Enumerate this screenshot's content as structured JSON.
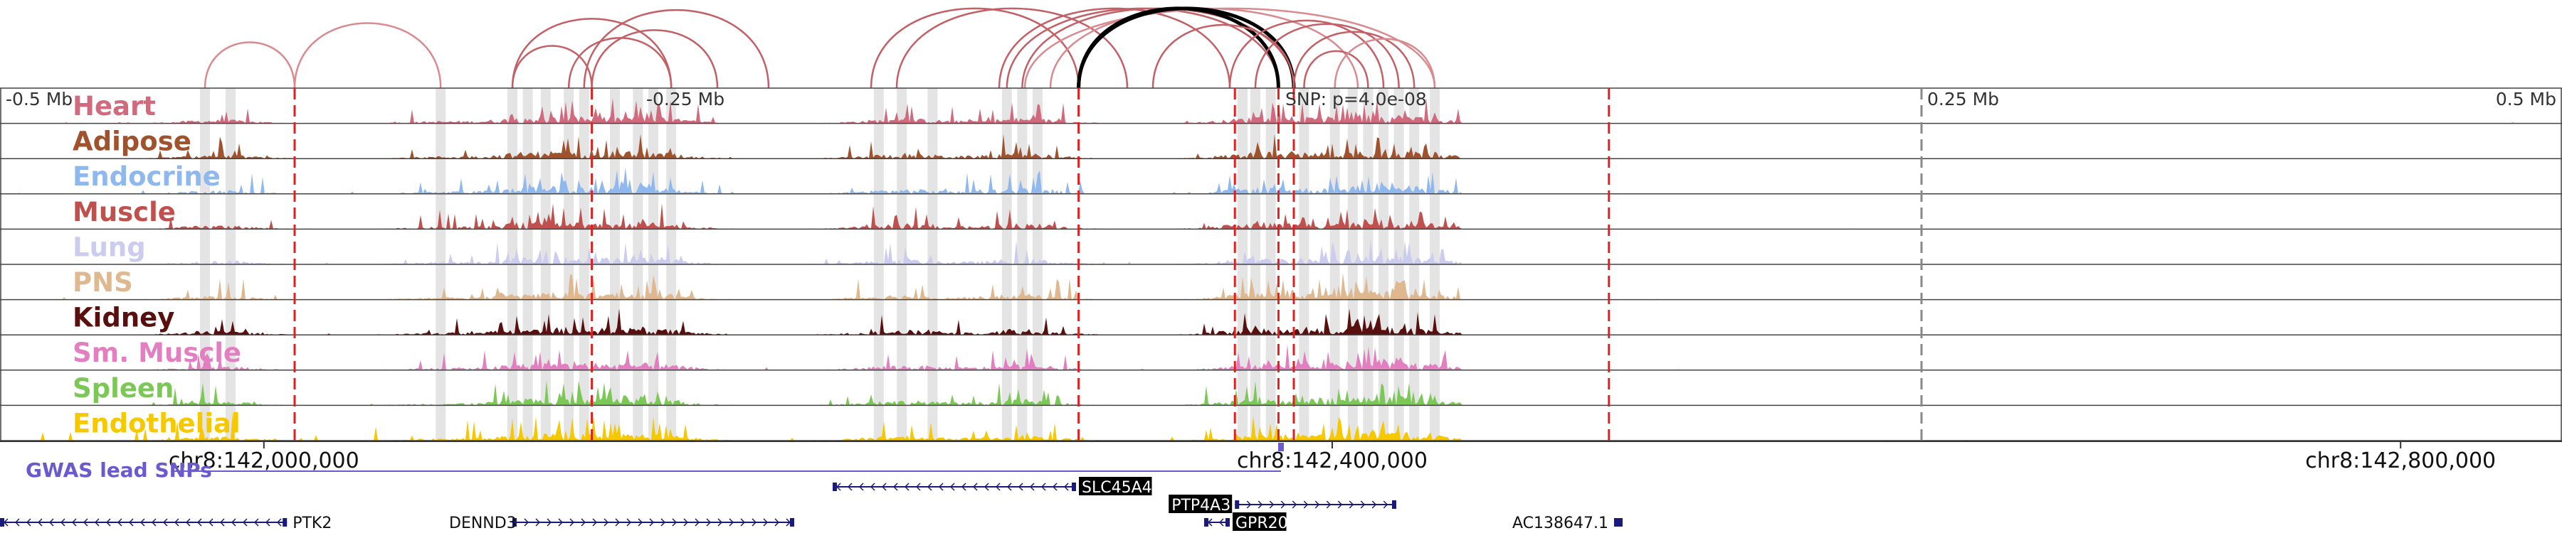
{
  "tracks": [
    {
      "name": "Heart",
      "color": "#d26a7e"
    },
    {
      "name": "Adipose",
      "color": "#a0522d"
    },
    {
      "name": "Endocrine",
      "color": "#8fb8ee"
    },
    {
      "name": "Muscle",
      "color": "#c0504d"
    },
    {
      "name": "Lung",
      "color": "#ccccee"
    },
    {
      "name": "PNS",
      "color": "#e0b890"
    },
    {
      "name": "Kidney",
      "color": "#5a0f0f"
    },
    {
      "name": "Sm. Muscle",
      "color": "#e37fc0"
    },
    {
      "name": "Spleen",
      "color": "#7cc857"
    },
    {
      "name": "Endothelial",
      "color": "#f5c800"
    }
  ],
  "top_axis": {
    "labels": [
      {
        "text": "-0.5 Mb",
        "pos": 0.0
      },
      {
        "text": "-0.25 Mb",
        "pos": 0.25
      },
      {
        "text": "0.25 Mb",
        "pos": 0.75
      },
      {
        "text": "0.5 Mb",
        "pos": 1.0
      }
    ],
    "snp_label": "SNP: p=4.0e-08",
    "snp_pos": 0.5
  },
  "coords": [
    {
      "text": "chr8:142,000,000",
      "pos": 0.103
    },
    {
      "text": "chr8:142,400,000",
      "pos": 0.52
    },
    {
      "text": "chr8:142,800,000",
      "pos": 0.937
    }
  ],
  "gwas_label": "GWAS lead SNPs",
  "genes": [
    {
      "name": "SLC45A4",
      "start": 0.325,
      "end": 0.42,
      "strand": "-",
      "row": 0,
      "label_pos": "right",
      "highlight": true
    },
    {
      "name": "PTP4A3",
      "start": 0.482,
      "end": 0.545,
      "strand": "+",
      "row": 1,
      "label_pos": "left",
      "highlight": true
    },
    {
      "name": "PTK2",
      "start": 0.0,
      "end": 0.112,
      "strand": "-",
      "row": 2,
      "label_pos": "right",
      "highlight": false
    },
    {
      "name": "DENND3",
      "start": 0.2,
      "end": 0.31,
      "strand": "+",
      "row": 2,
      "label_pos": "left",
      "highlight": false
    },
    {
      "name": "GPR20",
      "start": 0.47,
      "end": 0.48,
      "strand": "-",
      "row": 2,
      "label_pos": "right",
      "highlight": true
    },
    {
      "name": "AC138647.1",
      "start": 0.63,
      "end": 0.633,
      "strand": "+",
      "row": 2,
      "label_pos": "left",
      "highlight": false
    }
  ],
  "red_lines": [
    0.115,
    0.231,
    0.421,
    0.482,
    0.499,
    0.505,
    0.628
  ],
  "gray_line": 0.75,
  "gray_bands": [
    0.08,
    0.09,
    0.172,
    0.2,
    0.206,
    0.213,
    0.222,
    0.228,
    0.24,
    0.249,
    0.255,
    0.262,
    0.343,
    0.352,
    0.364,
    0.393,
    0.399,
    0.405,
    0.485,
    0.49,
    0.496,
    0.509,
    0.521,
    0.528,
    0.534,
    0.54,
    0.546,
    0.552,
    0.56
  ],
  "loops": [
    {
      "from": 0.08,
      "to": 0.115,
      "color": "#d98a8f"
    },
    {
      "from": 0.115,
      "to": 0.172,
      "color": "#d98a8f"
    },
    {
      "from": 0.2,
      "to": 0.231,
      "color": "#c26066"
    },
    {
      "from": 0.2,
      "to": 0.262,
      "color": "#c26066"
    },
    {
      "from": 0.222,
      "to": 0.262,
      "color": "#c26066"
    },
    {
      "from": 0.231,
      "to": 0.28,
      "color": "#c26066"
    },
    {
      "from": 0.228,
      "to": 0.3,
      "color": "#c26066"
    },
    {
      "from": 0.34,
      "to": 0.421,
      "color": "#c26066"
    },
    {
      "from": 0.35,
      "to": 0.44,
      "color": "#c26066"
    },
    {
      "from": 0.39,
      "to": 0.48,
      "color": "#c26066"
    },
    {
      "from": 0.393,
      "to": 0.499,
      "color": "#c26066"
    },
    {
      "from": 0.399,
      "to": 0.505,
      "color": "#c26066"
    },
    {
      "from": 0.41,
      "to": 0.53,
      "color": "#d98a8f"
    },
    {
      "from": 0.4,
      "to": 0.56,
      "color": "#d98a8f"
    },
    {
      "from": 0.421,
      "to": 0.505,
      "color": "#000000"
    },
    {
      "from": 0.421,
      "to": 0.499,
      "color": "#000000"
    },
    {
      "from": 0.45,
      "to": 0.505,
      "color": "#c26066"
    },
    {
      "from": 0.48,
      "to": 0.54,
      "color": "#c26066"
    },
    {
      "from": 0.49,
      "to": 0.546,
      "color": "#c26066"
    },
    {
      "from": 0.505,
      "to": 0.552,
      "color": "#c26066"
    },
    {
      "from": 0.509,
      "to": 0.534,
      "color": "#c26066"
    },
    {
      "from": 0.521,
      "to": 0.56,
      "color": "#d98a8f"
    }
  ]
}
